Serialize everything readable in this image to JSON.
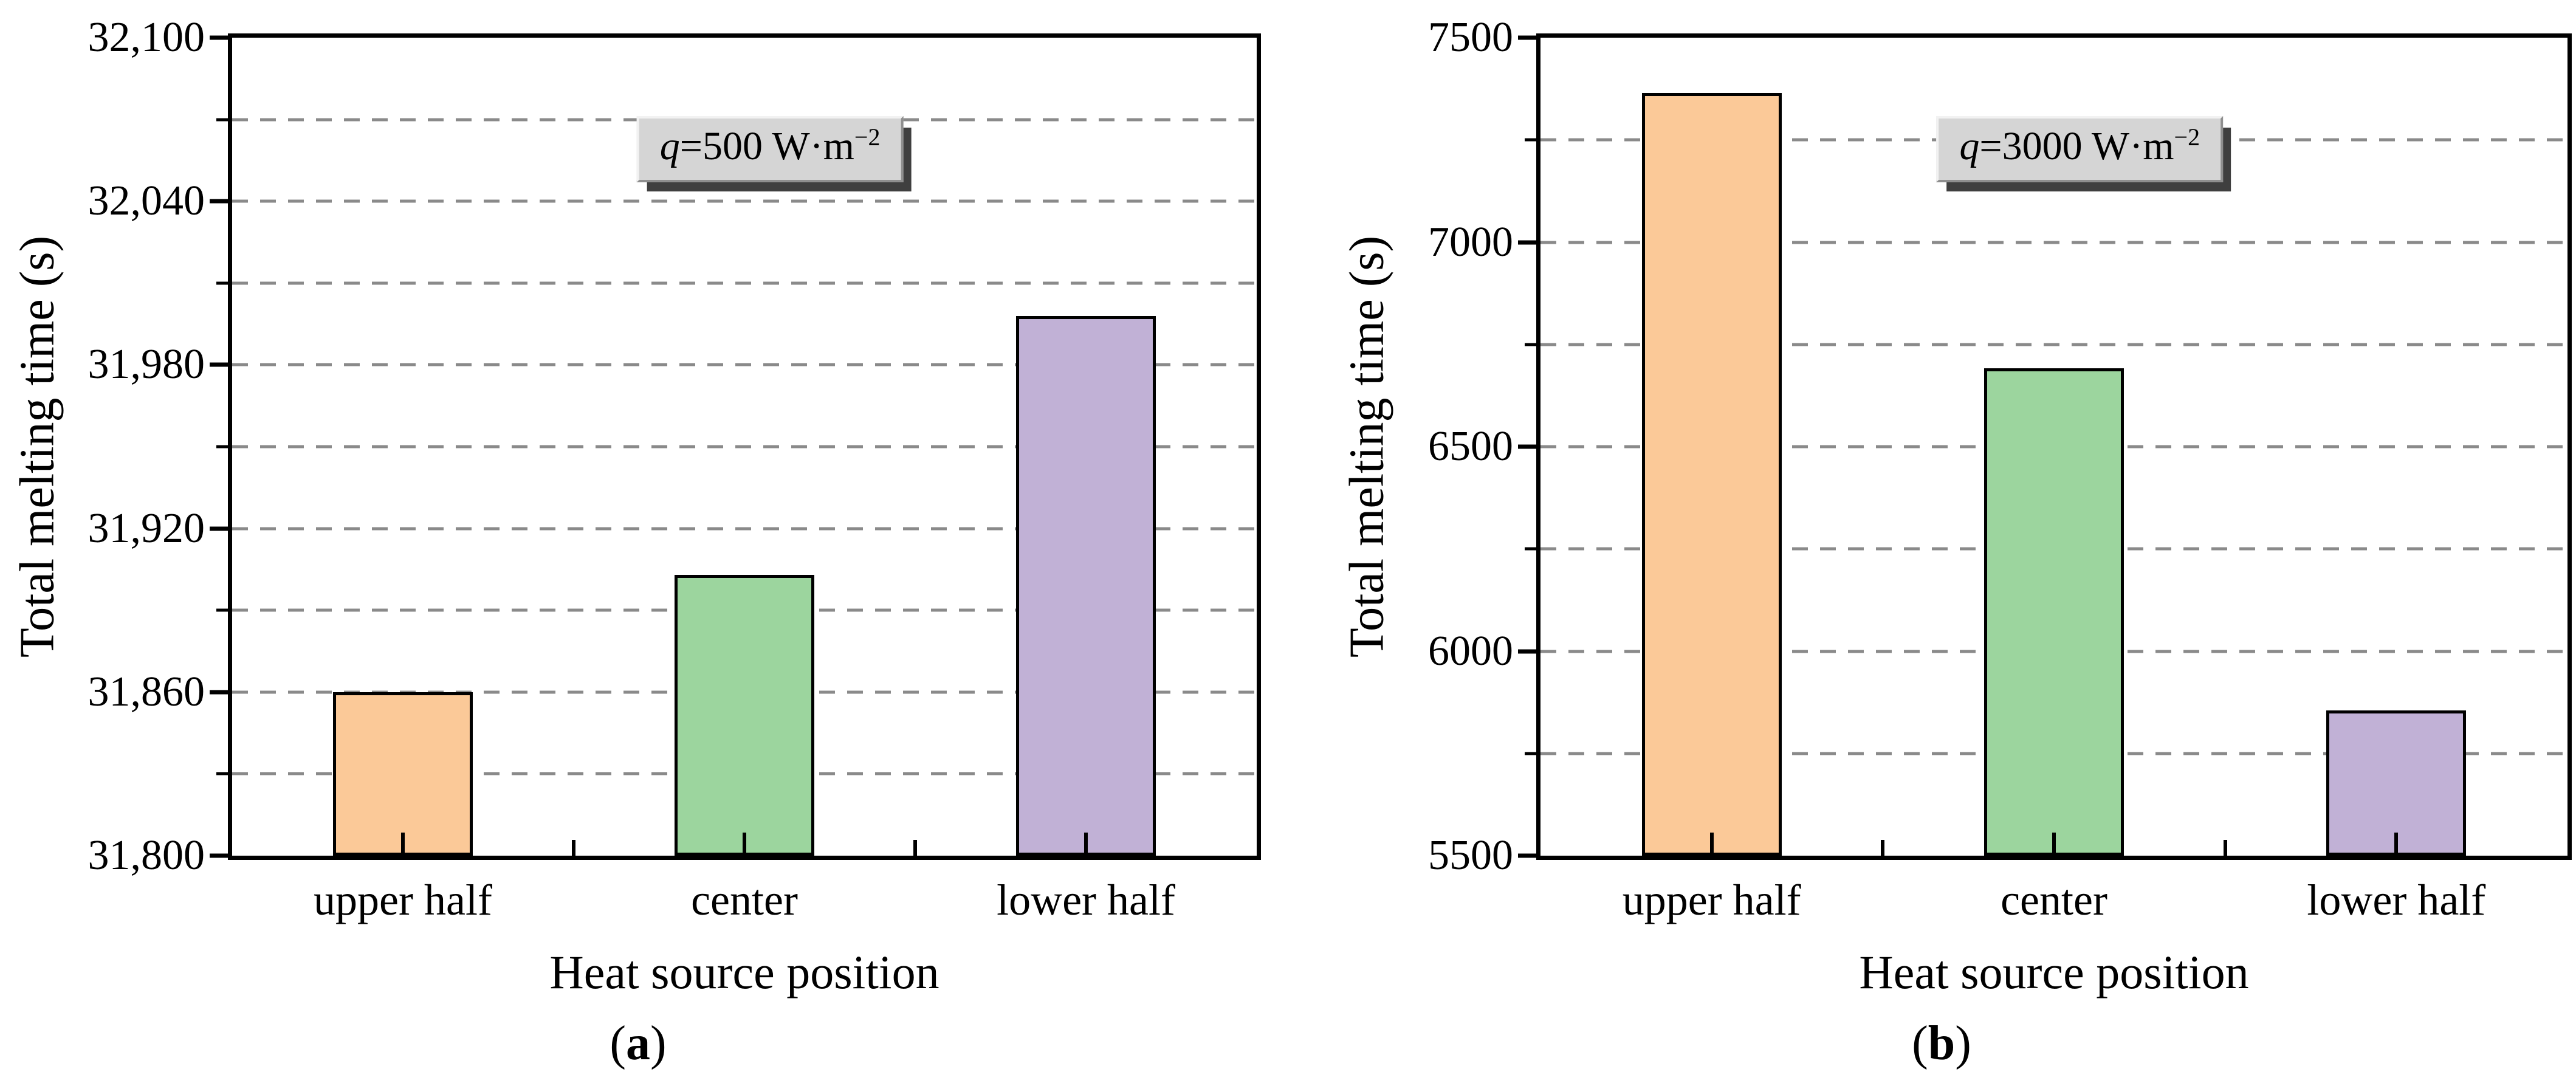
{
  "figure": {
    "description": "Two-panel bar figure: total melting time versus heat source position at two heat flux levels"
  },
  "colors": {
    "bar_upper_half": "#FBC998",
    "bar_center": "#9CD59E",
    "bar_lower_half": "#C1B1D6",
    "bar_border": "#000000",
    "gridline": "#8A8A8A",
    "axis": "#000000",
    "label_box_bg": "#D5D5D5",
    "label_box_highlight": "#F2F2F2",
    "label_box_edge_dark": "#8F8F8F",
    "label_box_shadow": "#3F3F3F",
    "text": "#000000"
  },
  "chart_data": [
    {
      "type": "bar",
      "panel": "a",
      "title_box": {
        "var": "q",
        "text": "=500 W·m",
        "sup": "−2"
      },
      "categories": [
        "upper half",
        "center",
        "lower half"
      ],
      "values": [
        31860,
        31903,
        31998
      ],
      "bar_colors": [
        "#FBC998",
        "#9CD59E",
        "#C1B1D6"
      ],
      "xlabel": "Heat source position",
      "ylabel": "Total melting time (s)",
      "ylim": [
        31800,
        32100
      ],
      "ytick_major": [
        31800,
        31860,
        31920,
        31980,
        32040,
        32100
      ],
      "ytick_labels": [
        "31,800",
        "31,860",
        "31,920",
        "31,980",
        "32,040",
        "32,100"
      ],
      "ytick_minor": [
        31830,
        31890,
        31950,
        32010,
        32070
      ],
      "gridlines": [
        31830,
        31860,
        31890,
        31920,
        31950,
        31980,
        32010,
        32040,
        32070
      ],
      "grid_style": "dashed",
      "legend": "none",
      "caption": {
        "open": "(",
        "letter": "a",
        "close": ")"
      }
    },
    {
      "type": "bar",
      "panel": "b",
      "title_box": {
        "var": "q",
        "text": "=3000 W·m",
        "sup": "−2"
      },
      "categories": [
        "upper half",
        "center",
        "lower half"
      ],
      "values": [
        7365,
        6692,
        5855
      ],
      "bar_colors": [
        "#FBC998",
        "#9CD59E",
        "#C1B1D6"
      ],
      "xlabel": "Heat source position",
      "ylabel": "Total melting time (s)",
      "ylim": [
        5500,
        7500
      ],
      "ytick_major": [
        5500,
        6000,
        6500,
        7000,
        7500
      ],
      "ytick_labels": [
        "5500",
        "6000",
        "6500",
        "7000",
        "7500"
      ],
      "ytick_minor": [
        5750,
        6250,
        6750,
        7250
      ],
      "gridlines": [
        5750,
        6000,
        6250,
        6500,
        6750,
        7000,
        7250
      ],
      "grid_style": "dashed",
      "legend": "none",
      "caption": {
        "open": "(",
        "letter": "b",
        "close": ")"
      }
    }
  ]
}
